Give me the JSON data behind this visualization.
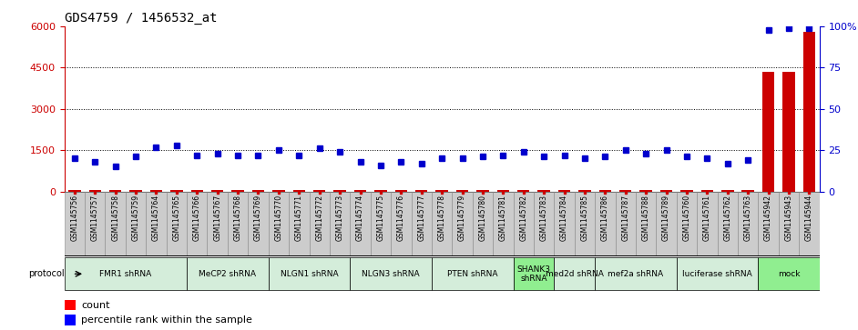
{
  "title": "GDS4759 / 1456532_at",
  "samples": [
    "GSM1145756",
    "GSM1145757",
    "GSM1145758",
    "GSM1145759",
    "GSM1145764",
    "GSM1145765",
    "GSM1145766",
    "GSM1145767",
    "GSM1145768",
    "GSM1145769",
    "GSM1145770",
    "GSM1145771",
    "GSM1145772",
    "GSM1145773",
    "GSM1145774",
    "GSM1145775",
    "GSM1145776",
    "GSM1145777",
    "GSM1145778",
    "GSM1145779",
    "GSM1145780",
    "GSM1145781",
    "GSM1145782",
    "GSM1145783",
    "GSM1145784",
    "GSM1145785",
    "GSM1145786",
    "GSM1145787",
    "GSM1145788",
    "GSM1145789",
    "GSM1145760",
    "GSM1145761",
    "GSM1145762",
    "GSM1145763",
    "GSM1145942",
    "GSM1145943",
    "GSM1145944"
  ],
  "counts": [
    60,
    60,
    60,
    60,
    60,
    60,
    60,
    60,
    60,
    60,
    60,
    60,
    60,
    60,
    60,
    60,
    60,
    60,
    60,
    60,
    60,
    60,
    60,
    60,
    60,
    60,
    60,
    60,
    60,
    60,
    60,
    60,
    60,
    60,
    4350,
    4350,
    5800
  ],
  "percentiles": [
    20,
    18,
    15,
    21,
    27,
    28,
    22,
    23,
    22,
    22,
    25,
    22,
    26,
    24,
    18,
    16,
    18,
    17,
    20,
    20,
    21,
    22,
    24,
    21,
    22,
    20,
    21,
    25,
    23,
    25,
    21,
    20,
    17,
    19,
    98,
    99,
    99
  ],
  "protocol_groups": [
    {
      "label": "FMR1 shRNA",
      "start": 0,
      "end": 5,
      "color": "#d4edda"
    },
    {
      "label": "MeCP2 shRNA",
      "start": 6,
      "end": 9,
      "color": "#d4edda"
    },
    {
      "label": "NLGN1 shRNA",
      "start": 10,
      "end": 13,
      "color": "#d4edda"
    },
    {
      "label": "NLGN3 shRNA",
      "start": 14,
      "end": 17,
      "color": "#d4edda"
    },
    {
      "label": "PTEN shRNA",
      "start": 18,
      "end": 21,
      "color": "#d4edda"
    },
    {
      "label": "SHANK3\nshRNA",
      "start": 22,
      "end": 23,
      "color": "#90ee90"
    },
    {
      "label": "med2d shRNA",
      "start": 24,
      "end": 25,
      "color": "#d4edda"
    },
    {
      "label": "mef2a shRNA",
      "start": 26,
      "end": 29,
      "color": "#d4edda"
    },
    {
      "label": "luciferase shRNA",
      "start": 30,
      "end": 33,
      "color": "#d4edda"
    },
    {
      "label": "mock",
      "start": 34,
      "end": 36,
      "color": "#90ee90"
    }
  ],
  "ylim_left": [
    0,
    6000
  ],
  "ylim_right": [
    0,
    100
  ],
  "yticks_left": [
    0,
    1500,
    3000,
    4500,
    6000
  ],
  "yticks_right": [
    0,
    25,
    50,
    75,
    100
  ],
  "bar_color": "#cc0000",
  "dot_color": "#0000cc",
  "label_count": "count",
  "label_percentile": "percentile rank within the sample",
  "sample_bg_color": "#d0d0d0",
  "left_axis_color": "#cc0000",
  "right_axis_color": "#0000cc"
}
